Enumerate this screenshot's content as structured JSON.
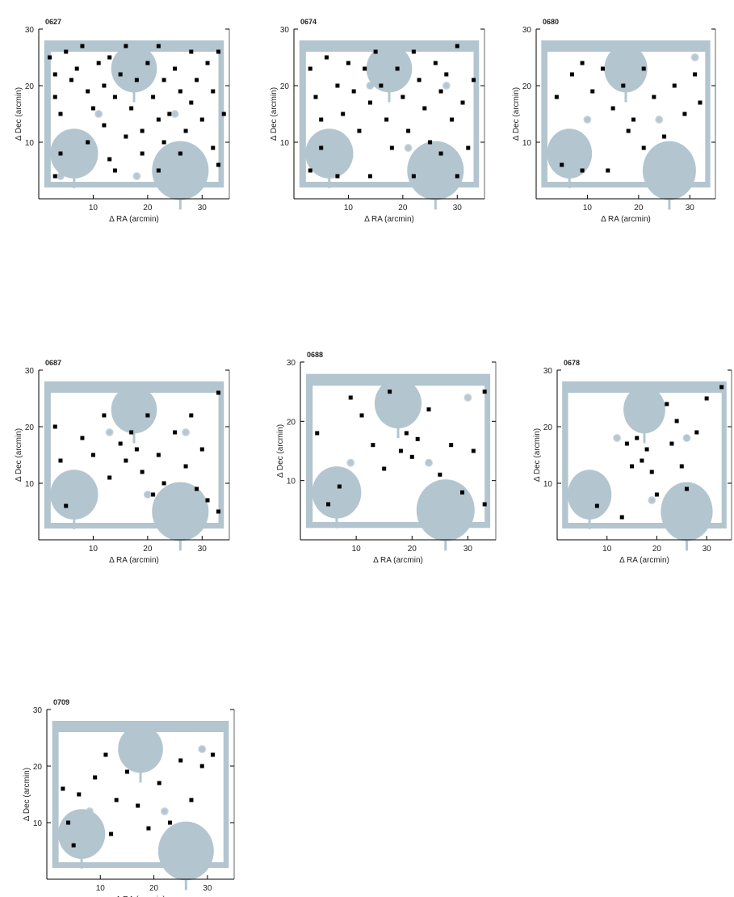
{
  "figure": {
    "style": {
      "mask_color": "#b3c5cf",
      "star_color": "#000000",
      "axis_color": "#000000",
      "background": "#ffffff"
    },
    "panels": [
      {
        "id": "T0001",
        "label": "0627",
        "chart_data": {
          "type": "scatter",
          "title": "0627",
          "xlabel": "Δ RA (arcmin)",
          "ylabel": "Δ Dec (arcmin)",
          "xlim": [
            0,
            35
          ],
          "ylim": [
            0,
            30
          ],
          "xticks": [
            10,
            20,
            30
          ],
          "yticks": [
            10,
            20,
            30
          ],
          "points": [
            [
              2,
              25
            ],
            [
              3,
              22
            ],
            [
              3,
              18
            ],
            [
              4,
              15
            ],
            [
              5,
              26
            ],
            [
              6,
              21
            ],
            [
              7,
              23
            ],
            [
              8,
              27
            ],
            [
              9,
              19
            ],
            [
              10,
              16
            ],
            [
              11,
              24
            ],
            [
              12,
              20
            ],
            [
              12,
              13
            ],
            [
              13,
              25
            ],
            [
              14,
              18
            ],
            [
              15,
              22
            ],
            [
              16,
              27
            ],
            [
              17,
              16
            ],
            [
              18,
              21
            ],
            [
              19,
              12
            ],
            [
              20,
              24
            ],
            [
              21,
              18
            ],
            [
              22,
              14
            ],
            [
              22,
              27
            ],
            [
              23,
              21
            ],
            [
              24,
              15
            ],
            [
              25,
              23
            ],
            [
              26,
              19
            ],
            [
              27,
              12
            ],
            [
              28,
              26
            ],
            [
              28,
              17
            ],
            [
              29,
              21
            ],
            [
              30,
              14
            ],
            [
              31,
              24
            ],
            [
              32,
              9
            ],
            [
              32,
              19
            ],
            [
              33,
              26
            ],
            [
              33,
              6
            ],
            [
              34,
              15
            ],
            [
              26,
              8
            ],
            [
              19,
              8
            ],
            [
              13,
              7
            ],
            [
              9,
              10
            ],
            [
              4,
              8
            ],
            [
              3,
              4
            ],
            [
              14,
              5
            ],
            [
              22,
              5
            ],
            [
              16,
              11
            ],
            [
              23,
              10
            ]
          ]
        }
      },
      {
        "id": "T0002",
        "label": "0674",
        "chart_data": {
          "type": "scatter",
          "title": "0674",
          "xlabel": "Δ RA (arcmin)",
          "ylabel": "Δ Dec (arcmin)",
          "xlim": [
            0,
            35
          ],
          "ylim": [
            0,
            30
          ],
          "xticks": [
            10,
            20,
            30
          ],
          "yticks": [
            10,
            20,
            30
          ],
          "points": [
            [
              3,
              23
            ],
            [
              4,
              18
            ],
            [
              5,
              14
            ],
            [
              6,
              25
            ],
            [
              8,
              20
            ],
            [
              9,
              15
            ],
            [
              10,
              24
            ],
            [
              11,
              19
            ],
            [
              12,
              12
            ],
            [
              13,
              23
            ],
            [
              14,
              17
            ],
            [
              15,
              26
            ],
            [
              16,
              20
            ],
            [
              17,
              14
            ],
            [
              18,
              9
            ],
            [
              19,
              23
            ],
            [
              20,
              18
            ],
            [
              21,
              12
            ],
            [
              22,
              26
            ],
            [
              23,
              21
            ],
            [
              24,
              16
            ],
            [
              25,
              10
            ],
            [
              26,
              24
            ],
            [
              27,
              19
            ],
            [
              28,
              22
            ],
            [
              29,
              14
            ],
            [
              30,
              27
            ],
            [
              31,
              17
            ],
            [
              32,
              9
            ],
            [
              33,
              21
            ],
            [
              30,
              4
            ],
            [
              22,
              4
            ],
            [
              14,
              4
            ],
            [
              8,
              4
            ],
            [
              3,
              5
            ],
            [
              5,
              9
            ],
            [
              27,
              8
            ]
          ]
        }
      },
      {
        "id": "T0003",
        "label": "0680",
        "chart_data": {
          "type": "scatter",
          "title": "0680",
          "xlabel": "Δ RA (arcmin)",
          "ylabel": "Δ Dec (arcmin)",
          "xlim": [
            0,
            35
          ],
          "ylim": [
            0,
            30
          ],
          "xticks": [
            10,
            20,
            30
          ],
          "yticks": [
            10,
            20,
            30
          ],
          "points": [
            [
              4,
              18
            ],
            [
              7,
              22
            ],
            [
              9,
              24
            ],
            [
              11,
              19
            ],
            [
              13,
              23
            ],
            [
              15,
              16
            ],
            [
              17,
              20
            ],
            [
              19,
              14
            ],
            [
              21,
              23
            ],
            [
              23,
              18
            ],
            [
              25,
              11
            ],
            [
              27,
              20
            ],
            [
              29,
              15
            ],
            [
              31,
              22
            ],
            [
              32,
              17
            ],
            [
              5,
              6
            ],
            [
              9,
              5
            ],
            [
              14,
              5
            ],
            [
              21,
              9
            ],
            [
              18,
              12
            ]
          ]
        }
      },
      {
        "id": "T0004",
        "label": "0687",
        "chart_data": {
          "type": "scatter",
          "title": "0687",
          "xlabel": "Δ RA (arcmin)",
          "ylabel": "Δ Dec (arcmin)",
          "xlim": [
            0,
            35
          ],
          "ylim": [
            0,
            30
          ],
          "xticks": [
            10,
            20,
            30
          ],
          "yticks": [
            10,
            20,
            30
          ],
          "points": [
            [
              3,
              20
            ],
            [
              4,
              14
            ],
            [
              5,
              6
            ],
            [
              8,
              18
            ],
            [
              10,
              15
            ],
            [
              12,
              22
            ],
            [
              13,
              11
            ],
            [
              15,
              17
            ],
            [
              16,
              14
            ],
            [
              17,
              19
            ],
            [
              18,
              16
            ],
            [
              19,
              12
            ],
            [
              20,
              22
            ],
            [
              21,
              8
            ],
            [
              22,
              15
            ],
            [
              23,
              10
            ],
            [
              25,
              19
            ],
            [
              27,
              13
            ],
            [
              28,
              22
            ],
            [
              29,
              9
            ],
            [
              30,
              16
            ],
            [
              31,
              7
            ],
            [
              33,
              26
            ],
            [
              33,
              5
            ]
          ]
        }
      },
      {
        "id": "T0005",
        "label": "0688",
        "chart_data": {
          "type": "scatter",
          "title": "0688",
          "xlabel": "Δ RA (arcmin)",
          "ylabel": "Δ Dec (arcmin)",
          "xlim": [
            0,
            35
          ],
          "ylim": [
            0,
            30
          ],
          "xticks": [
            10,
            20,
            30
          ],
          "yticks": [
            10,
            20,
            30
          ],
          "points": [
            [
              3,
              18
            ],
            [
              5,
              6
            ],
            [
              9,
              24
            ],
            [
              11,
              21
            ],
            [
              13,
              16
            ],
            [
              15,
              12
            ],
            [
              16,
              25
            ],
            [
              18,
              15
            ],
            [
              19,
              18
            ],
            [
              20,
              14
            ],
            [
              21,
              17
            ],
            [
              23,
              22
            ],
            [
              25,
              11
            ],
            [
              27,
              16
            ],
            [
              29,
              8
            ],
            [
              31,
              15
            ],
            [
              33,
              25
            ],
            [
              33,
              6
            ],
            [
              7,
              9
            ]
          ]
        }
      },
      {
        "id": "T0006",
        "label": "0678",
        "chart_data": {
          "type": "scatter",
          "title": "0678",
          "xlabel": "Δ RA (arcmin)",
          "ylabel": "Δ Dec (arcmin)",
          "xlim": [
            0,
            35
          ],
          "ylim": [
            0,
            30
          ],
          "xticks": [
            10,
            20,
            30
          ],
          "yticks": [
            10,
            20,
            30
          ],
          "points": [
            [
              8,
              6
            ],
            [
              13,
              4
            ],
            [
              14,
              17
            ],
            [
              15,
              13
            ],
            [
              16,
              18
            ],
            [
              17,
              14
            ],
            [
              18,
              16
            ],
            [
              19,
              12
            ],
            [
              20,
              8
            ],
            [
              22,
              24
            ],
            [
              23,
              17
            ],
            [
              24,
              21
            ],
            [
              25,
              13
            ],
            [
              26,
              9
            ],
            [
              28,
              19
            ],
            [
              30,
              25
            ],
            [
              33,
              27
            ]
          ]
        }
      },
      {
        "id": "T0007",
        "label": "0709",
        "chart_data": {
          "type": "scatter",
          "title": "0709",
          "xlabel": "Δ RA (arcmin)",
          "ylabel": "Δ Dec (arcmin)",
          "xlim": [
            0,
            35
          ],
          "ylim": [
            0,
            30
          ],
          "xticks": [
            10,
            20,
            30
          ],
          "yticks": [
            10,
            20,
            30
          ],
          "points": [
            [
              3,
              16
            ],
            [
              4,
              10
            ],
            [
              5,
              6
            ],
            [
              6,
              15
            ],
            [
              9,
              18
            ],
            [
              11,
              22
            ],
            [
              12,
              8
            ],
            [
              13,
              14
            ],
            [
              15,
              19
            ],
            [
              17,
              13
            ],
            [
              19,
              9
            ],
            [
              21,
              17
            ],
            [
              23,
              10
            ],
            [
              25,
              21
            ],
            [
              27,
              14
            ],
            [
              29,
              20
            ],
            [
              31,
              22
            ]
          ]
        }
      }
    ]
  }
}
